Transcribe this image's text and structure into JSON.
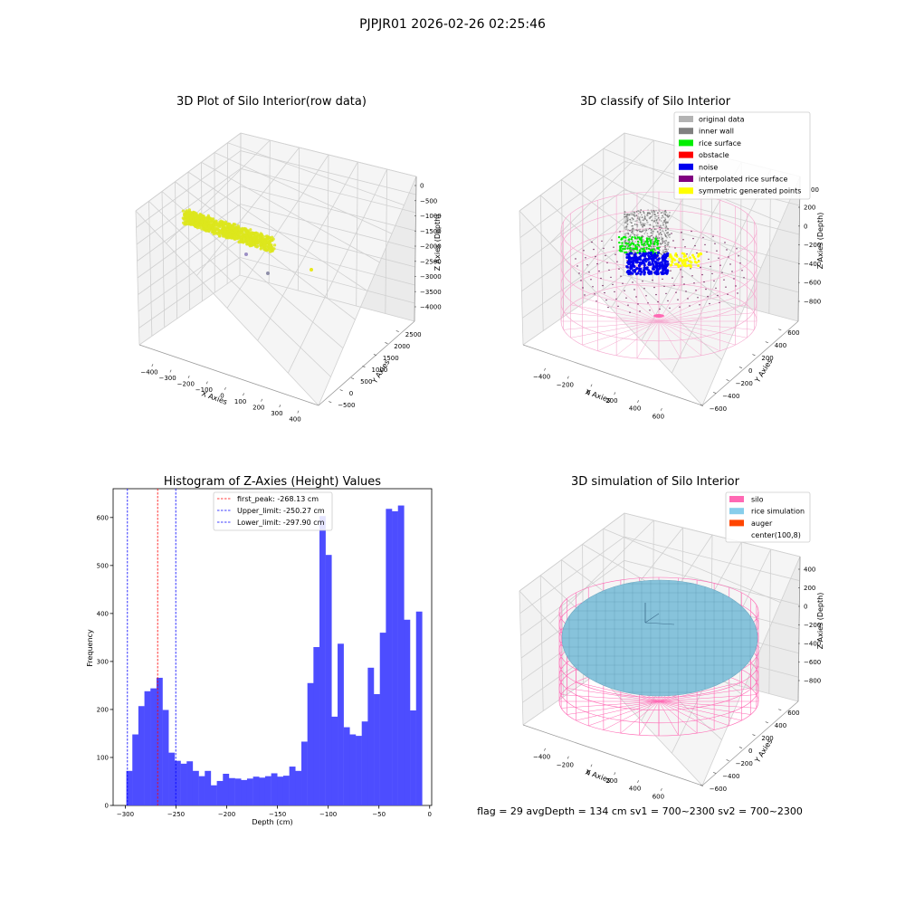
{
  "suptitle": "PJPJR01 2026-02-26 02:25:46",
  "footer": "flag = 29  avgDepth = 134 cm  sv1 = 700~2300  sv2 = 700~2300",
  "chart_data": [
    {
      "type": "scatter3d",
      "title": "3D Plot of Silo Interior(row data)",
      "xlabel": "X Axies",
      "ylabel": "Y Axies",
      "zlabel": "Z Axies (Depth)",
      "xticks": [
        "−400",
        "−300",
        "−200",
        "−100",
        "0",
        "100",
        "200",
        "300",
        "400"
      ],
      "yticks": [
        "−500",
        "0",
        "500",
        "1000",
        "1500",
        "2000",
        "2500"
      ],
      "zticks": [
        "0",
        "−500",
        "−1000",
        "−1500",
        "−2000",
        "−2500",
        "−3000",
        "−3500",
        "−4000"
      ],
      "xlim": [
        -450,
        450
      ],
      "ylim": [
        -600,
        2700
      ],
      "zlim": [
        -4000,
        0
      ],
      "point_color": "#dde61c",
      "outliers": [
        {
          "color": "#9b8fc4",
          "label": "purple"
        },
        {
          "color": "#8f8fa8",
          "label": "grey"
        },
        {
          "color": "#e8e81a",
          "label": "yellow"
        }
      ]
    },
    {
      "type": "scatter3d",
      "title": "3D classify of Silo Interior",
      "xlabel": "X Axies",
      "ylabel": "Y Axies",
      "zlabel": "Z Axies (Depth)",
      "xticks": [
        "−400",
        "−200",
        "0",
        "200",
        "400",
        "600"
      ],
      "yticks": [
        "−600",
        "−400",
        "−200",
        "0",
        "200",
        "400",
        "600"
      ],
      "zticks": [
        "200",
        "0",
        "−200",
        "−400",
        "−600",
        "−800"
      ],
      "zticks_partial": "00",
      "legend": [
        {
          "label": "original data",
          "color": "#b3b3b3"
        },
        {
          "label": "inner wall",
          "color": "#808080"
        },
        {
          "label": "rice surface",
          "color": "#00ee00"
        },
        {
          "label": "obstacle",
          "color": "#ff0000"
        },
        {
          "label": "noise",
          "color": "#0000ee"
        },
        {
          "label": "interpolated rice surface",
          "color": "#800080"
        },
        {
          "label": "symmetric generated points",
          "color": "#ffff00"
        }
      ],
      "legend_loc": "upper right",
      "wire_color": "#f5a9cf"
    },
    {
      "type": "histogram",
      "title": "Histogram of Z-Axies (Height) Values",
      "xlabel": "Depth (cm)",
      "ylabel": "Frequency",
      "xlim": [
        -312,
        2
      ],
      "ylim": [
        0,
        660
      ],
      "xticks": [
        -300,
        -250,
        -200,
        -150,
        -100,
        -50,
        0
      ],
      "xtick_labels": [
        "−300",
        "−250",
        "−200",
        "−150",
        "−100",
        "−50",
        "0"
      ],
      "yticks": [
        0,
        100,
        200,
        300,
        400,
        500,
        600
      ],
      "bar_color": "#4d4dff",
      "bin_start": -299,
      "bin_width": 5.95,
      "values": [
        72,
        148,
        207,
        238,
        244,
        266,
        199,
        110,
        93,
        87,
        92,
        72,
        61,
        72,
        42,
        51,
        66,
        57,
        56,
        53,
        56,
        60,
        58,
        61,
        67,
        60,
        62,
        81,
        72,
        133,
        255,
        330,
        603,
        522,
        185,
        337,
        163,
        148,
        145,
        175,
        287,
        232,
        360,
        618,
        613,
        625,
        387,
        198,
        404
      ],
      "vlines": [
        {
          "x": -268.13,
          "color": "#ff0000",
          "label": "first_peak: -268.13 cm"
        },
        {
          "x": -250.27,
          "color": "#0000ff",
          "label": "Upper_limit: -250.27 cm"
        },
        {
          "x": -297.9,
          "color": "#0000ff",
          "label": "Lower_limit: -297.90 cm"
        }
      ],
      "legend_loc": "upper center"
    },
    {
      "type": "surface3d",
      "title": "3D simulation of Silo Interior",
      "xlabel": "X Axies",
      "ylabel": "Y Axies",
      "zlabel": "Z Axies (Depth)",
      "xticks": [
        "−400",
        "−200",
        "0",
        "200",
        "400",
        "600"
      ],
      "yticks": [
        "−600",
        "−400",
        "−200",
        "0",
        "200",
        "400",
        "600"
      ],
      "zticks": [
        "400",
        "200",
        "0",
        "−200",
        "−400",
        "−600",
        "−800"
      ],
      "legend": [
        {
          "label": "silo",
          "color": "#ff69b4"
        },
        {
          "label": "rice simulation",
          "color": "#87ceeb"
        },
        {
          "label": "auger",
          "color": "#ff4500"
        },
        {
          "label": "center(100,8)",
          "color": "#ffffff"
        }
      ],
      "legend_loc": "upper right",
      "surface_color": "#87c3db"
    }
  ]
}
